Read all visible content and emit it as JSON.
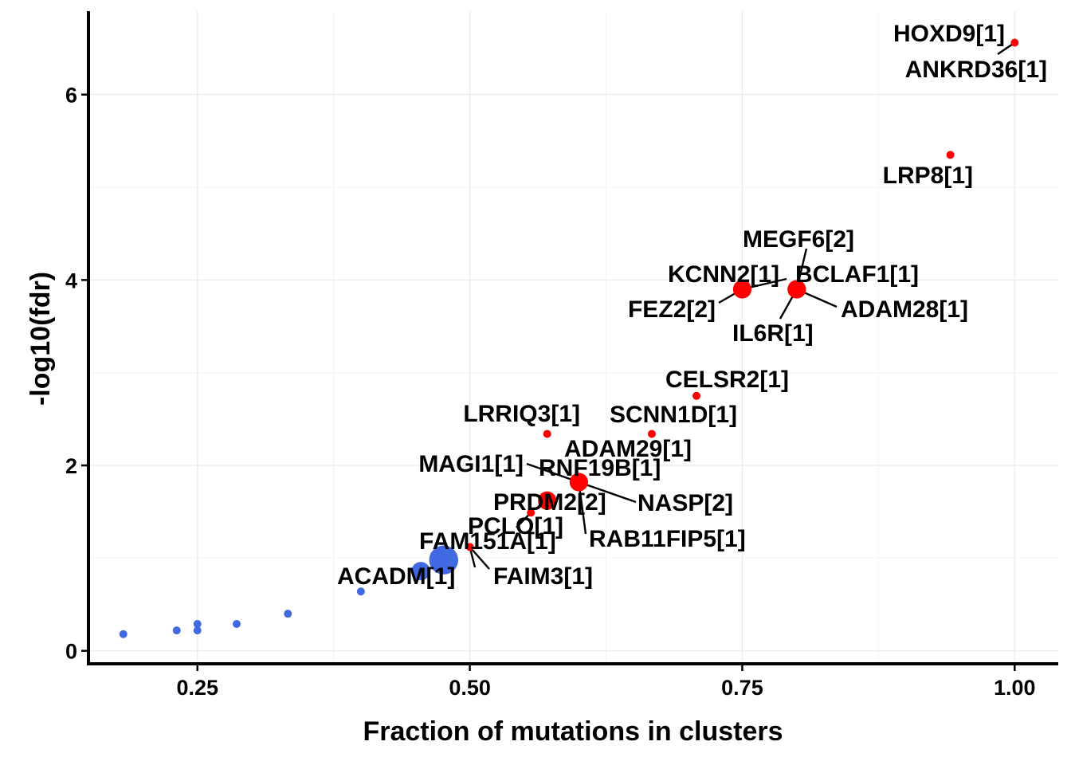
{
  "chart_data": {
    "type": "scatter",
    "xlabel": "Fraction of mutations in clusters",
    "ylabel": "-log10(fdr)",
    "xlim": [
      0.15,
      1.04
    ],
    "ylim": [
      -0.14,
      6.9
    ],
    "xticks": [
      0.25,
      0.5,
      0.75,
      1.0
    ],
    "xtick_labels": [
      "0.25",
      "0.50",
      "0.75",
      "1.00"
    ],
    "yticks": [
      0,
      2,
      4,
      6
    ],
    "ytick_labels": [
      "0",
      "2",
      "4",
      "6"
    ],
    "grid": true,
    "colors": {
      "significant": "#ff0000",
      "not_significant": "#4169e1"
    },
    "points": [
      {
        "x": 1.0,
        "y": 6.56,
        "size": 1,
        "sig": true,
        "label": "HOXD9[1]"
      },
      {
        "x": 1.0,
        "y": 6.56,
        "size": 1,
        "sig": true,
        "label": "ANKRD36[1]"
      },
      {
        "x": 0.941,
        "y": 5.35,
        "size": 1,
        "sig": true,
        "label": "LRP8[1]"
      },
      {
        "x": 0.8,
        "y": 3.9,
        "size": 3,
        "sig": true,
        "label": "MEGF6[2]"
      },
      {
        "x": 0.8,
        "y": 3.9,
        "size": 3,
        "sig": true,
        "label": "BCLAF1[1]"
      },
      {
        "x": 0.8,
        "y": 3.9,
        "size": 3,
        "sig": true,
        "label": "ADAM28[1]"
      },
      {
        "x": 0.8,
        "y": 3.9,
        "size": 3,
        "sig": true,
        "label": "IL6R[1]"
      },
      {
        "x": 0.75,
        "y": 3.9,
        "size": 3,
        "sig": true,
        "label": "KCNN2[1]"
      },
      {
        "x": 0.75,
        "y": 3.9,
        "size": 3,
        "sig": true,
        "label": "FEZ2[2]"
      },
      {
        "x": 0.708,
        "y": 2.75,
        "size": 1,
        "sig": true,
        "label": "CELSR2[1]"
      },
      {
        "x": 0.667,
        "y": 2.34,
        "size": 1,
        "sig": true,
        "label": "SCNN1D[1]"
      },
      {
        "x": 0.571,
        "y": 2.34,
        "size": 1,
        "sig": true,
        "label": "LRRIQ3[1]"
      },
      {
        "x": 0.6,
        "y": 1.82,
        "size": 3,
        "sig": true,
        "label": "ADAM29[1]"
      },
      {
        "x": 0.6,
        "y": 1.82,
        "size": 3,
        "sig": true,
        "label": "MAGI1[1]"
      },
      {
        "x": 0.6,
        "y": 1.82,
        "size": 3,
        "sig": true,
        "label": "RNF19B[1]"
      },
      {
        "x": 0.6,
        "y": 1.82,
        "size": 3,
        "sig": true,
        "label": "NASP[2]"
      },
      {
        "x": 0.6,
        "y": 1.82,
        "size": 3,
        "sig": true,
        "label": "RAB11FIP5[1]"
      },
      {
        "x": 0.571,
        "y": 1.62,
        "size": 3,
        "sig": true,
        "label": "PRDM2[2]"
      },
      {
        "x": 0.556,
        "y": 1.49,
        "size": 1,
        "sig": true,
        "label": "PCLO[1]"
      },
      {
        "x": 0.5,
        "y": 1.12,
        "size": 1,
        "sig": true,
        "label": "FAM151A[1]"
      },
      {
        "x": 0.5,
        "y": 1.12,
        "size": 1,
        "sig": true,
        "label": "FAIM3[1]"
      },
      {
        "x": 0.476,
        "y": 0.98,
        "size": 5,
        "sig": false,
        "label": ""
      },
      {
        "x": 0.455,
        "y": 0.86,
        "size": 3,
        "sig": false,
        "label": "ACADM[1]"
      },
      {
        "x": 0.4,
        "y": 0.64,
        "size": 1,
        "sig": false,
        "label": ""
      },
      {
        "x": 0.333,
        "y": 0.4,
        "size": 1,
        "sig": false,
        "label": ""
      },
      {
        "x": 0.286,
        "y": 0.29,
        "size": 1,
        "sig": false,
        "label": ""
      },
      {
        "x": 0.25,
        "y": 0.29,
        "size": 1,
        "sig": false,
        "label": ""
      },
      {
        "x": 0.25,
        "y": 0.22,
        "size": 1,
        "sig": false,
        "label": ""
      },
      {
        "x": 0.231,
        "y": 0.22,
        "size": 1,
        "sig": false,
        "label": ""
      },
      {
        "x": 0.182,
        "y": 0.18,
        "size": 1,
        "sig": false,
        "label": ""
      }
    ]
  }
}
